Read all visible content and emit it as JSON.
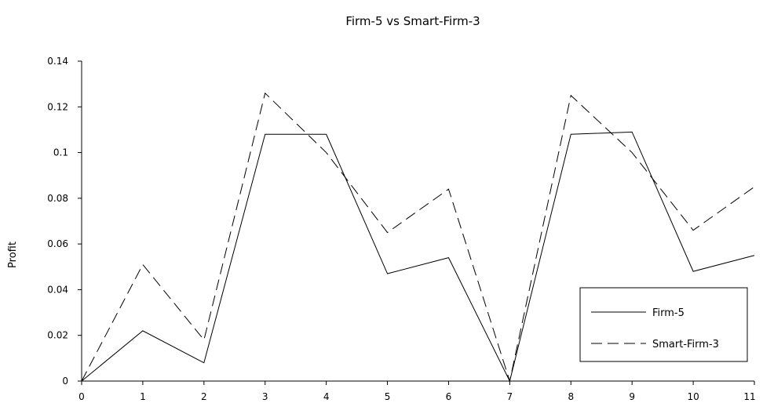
{
  "chart_data": {
    "type": "line",
    "title": "Firm-5 vs Smart-Firm-3",
    "xlabel": "",
    "ylabel": "Profit",
    "x": [
      0,
      1,
      2,
      3,
      4,
      5,
      6,
      7,
      8,
      9,
      10,
      11
    ],
    "series": [
      {
        "name": "Firm-5",
        "values": [
          0,
          0.022,
          0.008,
          0.108,
          0.108,
          0.047,
          0.054,
          0,
          0.108,
          0.109,
          0.048,
          0.055
        ],
        "style": "solid",
        "color": "#000000"
      },
      {
        "name": "Smart-Firm-3",
        "values": [
          0,
          0.051,
          0.018,
          0.126,
          0.1,
          0.065,
          0.084,
          0,
          0.125,
          0.1,
          0.066,
          0.085
        ],
        "style": "dashed",
        "color": "#000000"
      }
    ],
    "xlim": [
      0,
      11
    ],
    "ylim": [
      0,
      0.14
    ],
    "y_ticks": [
      "0",
      "0.02",
      "0.04",
      "0.06",
      "0.08",
      "0.1",
      "0.12",
      "0.14"
    ],
    "x_ticks": [
      "0",
      "1",
      "2",
      "3",
      "4",
      "5",
      "6",
      "7",
      "8",
      "9",
      "10",
      "11"
    ],
    "grid": false,
    "legend_position": "bottom-right"
  }
}
